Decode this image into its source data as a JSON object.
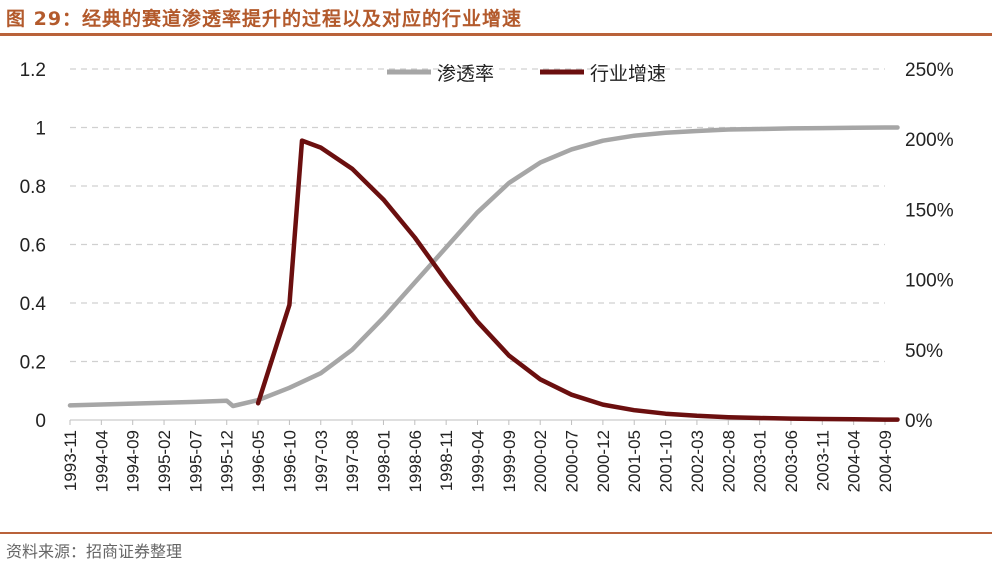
{
  "figure_title": "图 29：经典的赛道渗透率提升的过程以及对应的行业增速",
  "source": "资料来源：招商证券整理",
  "colors": {
    "penetration": "#a6a6a6",
    "growth": "#6b0f0f",
    "title": "#b35a2c",
    "rule": "#b9623a",
    "grid": "#d0d0d0"
  },
  "chart_data": {
    "type": "line",
    "title": "",
    "legend_position": "top",
    "grid": true,
    "x": [
      "1993-11",
      "1994-04",
      "1994-09",
      "1995-02",
      "1995-07",
      "1995-12",
      "1996-05",
      "1996-10",
      "1997-03",
      "1997-08",
      "1998-01",
      "1998-06",
      "1998-11",
      "1999-04",
      "1999-09",
      "2000-02",
      "2000-07",
      "2000-12",
      "2001-05",
      "2001-10",
      "2002-03",
      "2002-08",
      "2003-01",
      "2003-06",
      "2003-11",
      "2004-04",
      "2004-09"
    ],
    "y_left": {
      "min": 0,
      "max": 1.2,
      "ticks": [
        "0",
        "0.2",
        "0.4",
        "0.6",
        "0.8",
        "1",
        "1.2"
      ]
    },
    "y_right": {
      "min": 0,
      "max": 2.5,
      "ticks": [
        "0%",
        "50%",
        "100%",
        "150%",
        "200%",
        "250%"
      ]
    },
    "series": [
      {
        "name": "渗透率",
        "axis": "left",
        "points": [
          [
            "1993-11",
            0.05
          ],
          [
            "1994-04",
            0.053
          ],
          [
            "1994-09",
            0.056
          ],
          [
            "1995-02",
            0.059
          ],
          [
            "1995-07",
            0.062
          ],
          [
            "1995-12",
            0.066
          ],
          [
            "1996-01",
            0.048
          ],
          [
            "1996-05",
            0.068
          ],
          [
            "1996-10",
            0.11
          ],
          [
            "1997-03",
            0.16
          ],
          [
            "1997-08",
            0.24
          ],
          [
            "1998-01",
            0.35
          ],
          [
            "1998-06",
            0.47
          ],
          [
            "1998-11",
            0.59
          ],
          [
            "1999-04",
            0.71
          ],
          [
            "1999-09",
            0.81
          ],
          [
            "2000-02",
            0.88
          ],
          [
            "2000-07",
            0.925
          ],
          [
            "2000-12",
            0.955
          ],
          [
            "2001-05",
            0.972
          ],
          [
            "2001-10",
            0.982
          ],
          [
            "2002-03",
            0.988
          ],
          [
            "2002-08",
            0.993
          ],
          [
            "2003-01",
            0.995
          ],
          [
            "2003-06",
            0.997
          ],
          [
            "2003-11",
            0.998
          ],
          [
            "2004-04",
            0.999
          ],
          [
            "2004-09",
            1.0
          ],
          [
            "2004-11",
            1.0
          ]
        ]
      },
      {
        "name": "行业增速",
        "axis": "right",
        "points": [
          [
            "1996-05",
            0.12
          ],
          [
            "1996-10",
            0.82
          ],
          [
            "1996-12",
            1.99
          ],
          [
            "1997-03",
            1.94
          ],
          [
            "1997-08",
            1.79
          ],
          [
            "1998-01",
            1.57
          ],
          [
            "1998-06",
            1.3
          ],
          [
            "1998-11",
            0.99
          ],
          [
            "1999-04",
            0.7
          ],
          [
            "1999-09",
            0.46
          ],
          [
            "2000-02",
            0.29
          ],
          [
            "2000-07",
            0.18
          ],
          [
            "2000-12",
            0.11
          ],
          [
            "2001-05",
            0.07
          ],
          [
            "2001-10",
            0.045
          ],
          [
            "2002-03",
            0.03
          ],
          [
            "2002-08",
            0.02
          ],
          [
            "2003-01",
            0.014
          ],
          [
            "2003-06",
            0.01
          ],
          [
            "2003-11",
            0.007
          ],
          [
            "2004-04",
            0.005
          ],
          [
            "2004-09",
            0.003
          ],
          [
            "2004-11",
            0.003
          ]
        ]
      }
    ]
  }
}
